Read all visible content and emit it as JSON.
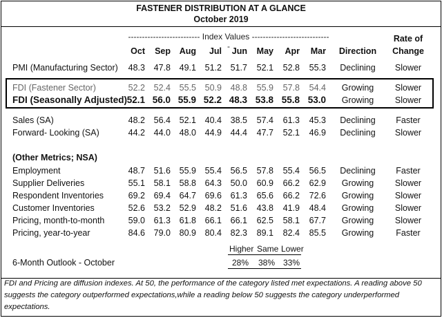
{
  "title_line1": "FASTENER DISTRIBUTION AT A GLANCE",
  "title_line2": "October 2019",
  "index_values_label": "-------------------------- Index Values -----------------------------",
  "months": [
    "Oct",
    "Sep",
    "Aug",
    "Jul",
    "Jun",
    "May",
    "Apr",
    "Mar"
  ],
  "direction_header": "Direction",
  "rate_header_line1": "Rate of",
  "rate_header_line2": "Change",
  "rows": [
    {
      "label": "PMI (Manufacturing Sector)",
      "values": [
        "48.3",
        "47.8",
        "49.1",
        "51.2",
        "51.7",
        "52.1",
        "52.8",
        "55.3"
      ],
      "direction": "Declining",
      "rate": "Slower"
    },
    {
      "label": "FDI (Fastener Sector)",
      "values": [
        "52.2",
        "52.4",
        "55.5",
        "50.9",
        "48.8",
        "55.9",
        "57.8",
        "54.4"
      ],
      "direction": "Growing",
      "rate": "Slower"
    },
    {
      "label": "FDI (Seasonally Adjusted)",
      "values": [
        "52.1",
        "56.0",
        "55.9",
        "52.2",
        "48.3",
        "53.8",
        "55.8",
        "53.0"
      ],
      "direction": "Growing",
      "rate": "Slower"
    },
    {
      "label": "Sales (SA)",
      "values": [
        "48.2",
        "56.4",
        "52.1",
        "40.4",
        "38.5",
        "57.4",
        "61.3",
        "45.3"
      ],
      "direction": "Declining",
      "rate": "Faster"
    },
    {
      "label": "Forward- Looking (SA)",
      "values": [
        "44.2",
        "44.0",
        "48.0",
        "44.9",
        "44.4",
        "47.7",
        "52.1",
        "46.9"
      ],
      "direction": "Declining",
      "rate": "Slower"
    }
  ],
  "other_metrics_label": "(Other Metrics; NSA)",
  "other_rows": [
    {
      "label": "Employment",
      "values": [
        "48.7",
        "51.6",
        "55.9",
        "55.4",
        "56.5",
        "57.8",
        "55.4",
        "56.5"
      ],
      "direction": "Declining",
      "rate": "Faster"
    },
    {
      "label": "Supplier Deliveries",
      "values": [
        "55.1",
        "58.1",
        "58.8",
        "64.3",
        "50.0",
        "60.9",
        "66.2",
        "62.9"
      ],
      "direction": "Growing",
      "rate": "Slower"
    },
    {
      "label": "Respondent Inventories",
      "values": [
        "69.2",
        "69.4",
        "64.7",
        "69.6",
        "61.3",
        "65.6",
        "66.2",
        "72.6"
      ],
      "direction": "Growing",
      "rate": "Slower"
    },
    {
      "label": "Customer Inventories",
      "values": [
        "52.6",
        "53.2",
        "52.9",
        "48.2",
        "51.6",
        "43.8",
        "41.9",
        "48.4"
      ],
      "direction": "Growing",
      "rate": "Slower"
    },
    {
      "label": "Pricing, month-to-month",
      "values": [
        "59.0",
        "61.3",
        "61.8",
        "66.1",
        "66.1",
        "62.5",
        "58.1",
        "67.7"
      ],
      "direction": "Growing",
      "rate": "Slower"
    },
    {
      "label": "Pricing, year-to-year",
      "values": [
        "84.6",
        "79.0",
        "80.9",
        "80.4",
        "82.3",
        "89.1",
        "82.4",
        "85.5"
      ],
      "direction": "Growing",
      "rate": "Faster"
    }
  ],
  "outlook": {
    "label": "6-Month Outlook - October",
    "higher_label": "Higher",
    "same_label": "Same",
    "lower_label": "Lower",
    "higher_value": "28%",
    "same_value": "38%",
    "lower_value": "33%"
  },
  "footnote": "FDI and Pricing are diffusion indexes.  At 50, the performance of the category listed met expectations. A reading above 50 suggests the category outperformed expectations,while a reading below 50 suggests the category underperformed expectations."
}
